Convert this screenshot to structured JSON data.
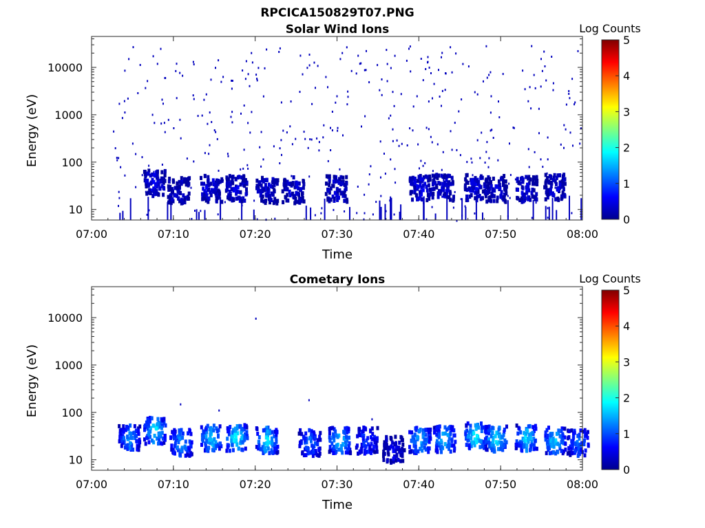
{
  "figure": {
    "title": "RPCICA150829T07.PNG"
  },
  "chart_data": [
    {
      "type": "heatmap",
      "title": "Solar Wind Ions",
      "xlabel": "Time",
      "ylabel": "Energy (eV)",
      "x_tick_labels": [
        "07:00",
        "07:10",
        "07:20",
        "07:30",
        "07:40",
        "07:50",
        "08:00"
      ],
      "x_tick_minutes": [
        0,
        10,
        20,
        30,
        40,
        50,
        60
      ],
      "xlim_minutes": [
        0,
        60
      ],
      "y_scale": "log",
      "ylim": [
        6,
        45000
      ],
      "y_tick_labels": [
        "10",
        "100",
        "1000",
        "10000"
      ],
      "y_ticks": [
        10,
        100,
        1000,
        10000
      ],
      "colorbar": {
        "label": "Log Counts",
        "range": [
          0,
          5
        ],
        "tick_labels": [
          "0",
          "1",
          "2",
          "3",
          "4",
          "5"
        ],
        "colormap": "jet"
      },
      "bursts": [
        {
          "t": 7.6,
          "e": 40,
          "level": 0.5
        },
        {
          "t": 10.5,
          "e": 28,
          "level": 0.4
        },
        {
          "t": 14.5,
          "e": 30,
          "level": 0.5
        },
        {
          "t": 17.6,
          "e": 30,
          "level": 0.5
        },
        {
          "t": 21.3,
          "e": 28,
          "level": 0.4
        },
        {
          "t": 24.5,
          "e": 28,
          "level": 0.4
        },
        {
          "t": 29.8,
          "e": 30,
          "level": 0.4
        },
        {
          "t": 40.0,
          "e": 30,
          "level": 0.5
        },
        {
          "t": 42.8,
          "e": 32,
          "level": 0.4
        },
        {
          "t": 46.8,
          "e": 32,
          "level": 0.5
        },
        {
          "t": 49.3,
          "e": 30,
          "level": 0.4
        },
        {
          "t": 53.0,
          "e": 30,
          "level": 0.5
        },
        {
          "t": 56.5,
          "e": 32,
          "level": 0.4
        }
      ],
      "scatter": {
        "from_minute": 2.5,
        "to_minute": 60,
        "e_min": 6,
        "e_max": 30000,
        "level": 0.3
      }
    },
    {
      "type": "heatmap",
      "title": "Cometary Ions",
      "xlabel": "Time",
      "ylabel": "Energy (eV)",
      "x_tick_labels": [
        "07:00",
        "07:10",
        "07:20",
        "07:30",
        "07:40",
        "07:50",
        "08:00"
      ],
      "x_tick_minutes": [
        0,
        10,
        20,
        30,
        40,
        50,
        60
      ],
      "xlim_minutes": [
        0,
        60
      ],
      "y_scale": "log",
      "ylim": [
        6,
        45000
      ],
      "y_tick_labels": [
        "10",
        "100",
        "1000",
        "10000"
      ],
      "y_ticks": [
        10,
        100,
        1000,
        10000
      ],
      "colorbar": {
        "label": "Log Counts",
        "range": [
          0,
          5
        ],
        "tick_labels": [
          "0",
          "1",
          "2",
          "3",
          "4",
          "5"
        ],
        "colormap": "jet"
      },
      "bursts": [
        {
          "t": 4.5,
          "e": 32,
          "level": 1.4
        },
        {
          "t": 7.6,
          "e": 45,
          "level": 1.9
        },
        {
          "t": 10.8,
          "e": 25,
          "level": 1.5
        },
        {
          "t": 14.5,
          "e": 32,
          "level": 1.8
        },
        {
          "t": 17.6,
          "e": 32,
          "level": 2.0
        },
        {
          "t": 21.3,
          "e": 28,
          "level": 1.8
        },
        {
          "t": 26.5,
          "e": 25,
          "level": 1.2
        },
        {
          "t": 30.2,
          "e": 28,
          "level": 1.8
        },
        {
          "t": 33.5,
          "e": 28,
          "level": 1.0
        },
        {
          "t": 36.8,
          "e": 18,
          "level": 0.5
        },
        {
          "t": 40.0,
          "e": 28,
          "level": 1.6
        },
        {
          "t": 43.0,
          "e": 30,
          "level": 1.7
        },
        {
          "t": 46.8,
          "e": 35,
          "level": 2.0
        },
        {
          "t": 49.3,
          "e": 30,
          "level": 2.0
        },
        {
          "t": 53.0,
          "e": 32,
          "level": 1.8
        },
        {
          "t": 56.5,
          "e": 28,
          "level": 1.8
        },
        {
          "t": 59.3,
          "e": 25,
          "level": 1.2
        }
      ],
      "points": [
        {
          "t": 20.0,
          "e": 10000,
          "level": 0.3
        },
        {
          "t": 10.8,
          "e": 155,
          "level": 0.3
        },
        {
          "t": 15.5,
          "e": 115,
          "level": 0.3
        },
        {
          "t": 26.5,
          "e": 190,
          "level": 0.3
        },
        {
          "t": 34.2,
          "e": 75,
          "level": 0.3
        }
      ]
    }
  ]
}
